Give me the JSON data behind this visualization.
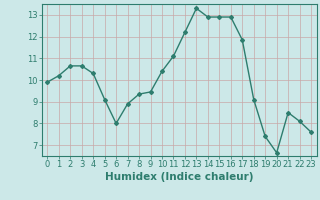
{
  "x": [
    0,
    1,
    2,
    3,
    4,
    5,
    6,
    7,
    8,
    9,
    10,
    11,
    12,
    13,
    14,
    15,
    16,
    17,
    18,
    19,
    20,
    21,
    22,
    23
  ],
  "y": [
    9.9,
    10.2,
    10.65,
    10.65,
    10.3,
    9.1,
    8.0,
    8.9,
    9.35,
    9.45,
    10.4,
    11.1,
    12.2,
    13.3,
    12.9,
    12.9,
    12.9,
    11.85,
    9.1,
    7.4,
    6.65,
    8.5,
    8.1,
    7.6
  ],
  "line_color": "#2e7d6e",
  "marker": "D",
  "markersize": 2.0,
  "linewidth": 1.0,
  "xlabel": "Humidex (Indice chaleur)",
  "ylim": [
    6.5,
    13.5
  ],
  "xlim": [
    -0.5,
    23.5
  ],
  "yticks": [
    7,
    8,
    9,
    10,
    11,
    12,
    13
  ],
  "xticks": [
    0,
    1,
    2,
    3,
    4,
    5,
    6,
    7,
    8,
    9,
    10,
    11,
    12,
    13,
    14,
    15,
    16,
    17,
    18,
    19,
    20,
    21,
    22,
    23
  ],
  "bg_color": "#cce8e8",
  "grid_color": "#c8a8a8",
  "label_color": "#2e7d6e",
  "xlabel_fontsize": 7.5,
  "tick_fontsize": 6.0
}
